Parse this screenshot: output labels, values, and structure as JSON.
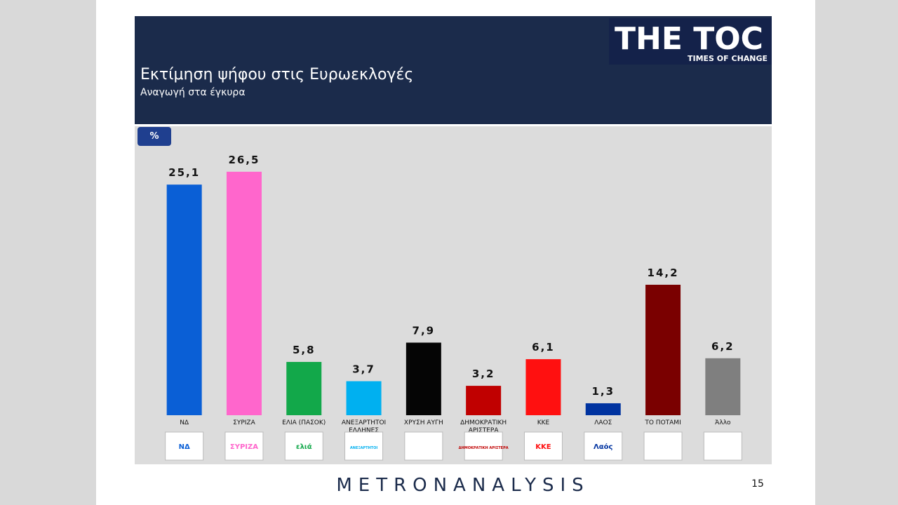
{
  "header": {
    "title": "Εκτίμηση ψήφου στις Ευρωεκλογές",
    "subtitle": "Αναγωγή στα έγκυρα",
    "logo": "THE TOC",
    "logo_tagline": "TIMES OF CHANGE"
  },
  "unit": "%",
  "chart_data": {
    "type": "bar",
    "categories": [
      "ΝΔ",
      "ΣΥΡΙΖΑ",
      "ΕΛΙΑ (ΠΑΣΟΚ)",
      "ΑΝΕΞΑΡΤΗΤΟΙ ΕΛΛΗΝΕΣ",
      "ΧΡΥΣΗ ΑΥΓΗ",
      "ΔΗΜΟΚΡΑΤΙΚΗ ΑΡΙΣΤΕΡΑ",
      "ΚΚΕ",
      "ΛΑΟΣ",
      "ΤΟ ΠΟΤΑΜΙ",
      "Άλλο"
    ],
    "values": [
      25.1,
      26.5,
      5.8,
      3.7,
      7.9,
      3.2,
      6.1,
      1.3,
      14.2,
      6.2
    ],
    "value_labels": [
      "25,1",
      "26,5",
      "5,8",
      "3,7",
      "7,9",
      "3,2",
      "6,1",
      "1,3",
      "14,2",
      "6,2"
    ],
    "colors": [
      "#0a5fd6",
      "#ff66cc",
      "#12a84a",
      "#00b0f0",
      "#050505",
      "#c00000",
      "#ff1010",
      "#0033a0",
      "#7a0000",
      "#7f7f7f"
    ],
    "logos": [
      "ΝΔ",
      "ΣΥΡΙΖΑ",
      "ελιά",
      "ΑΝΕΞΑΡΤΗΤΟΙ",
      null,
      "ΔΗΜΟΚΡΑΤΙΚΗ ΑΡΙΣΤΕΡΑ",
      "ΚΚΕ",
      "Λαός",
      null,
      null
    ]
  },
  "footer": {
    "brand": "METRONANALYSIS",
    "page": "15"
  }
}
